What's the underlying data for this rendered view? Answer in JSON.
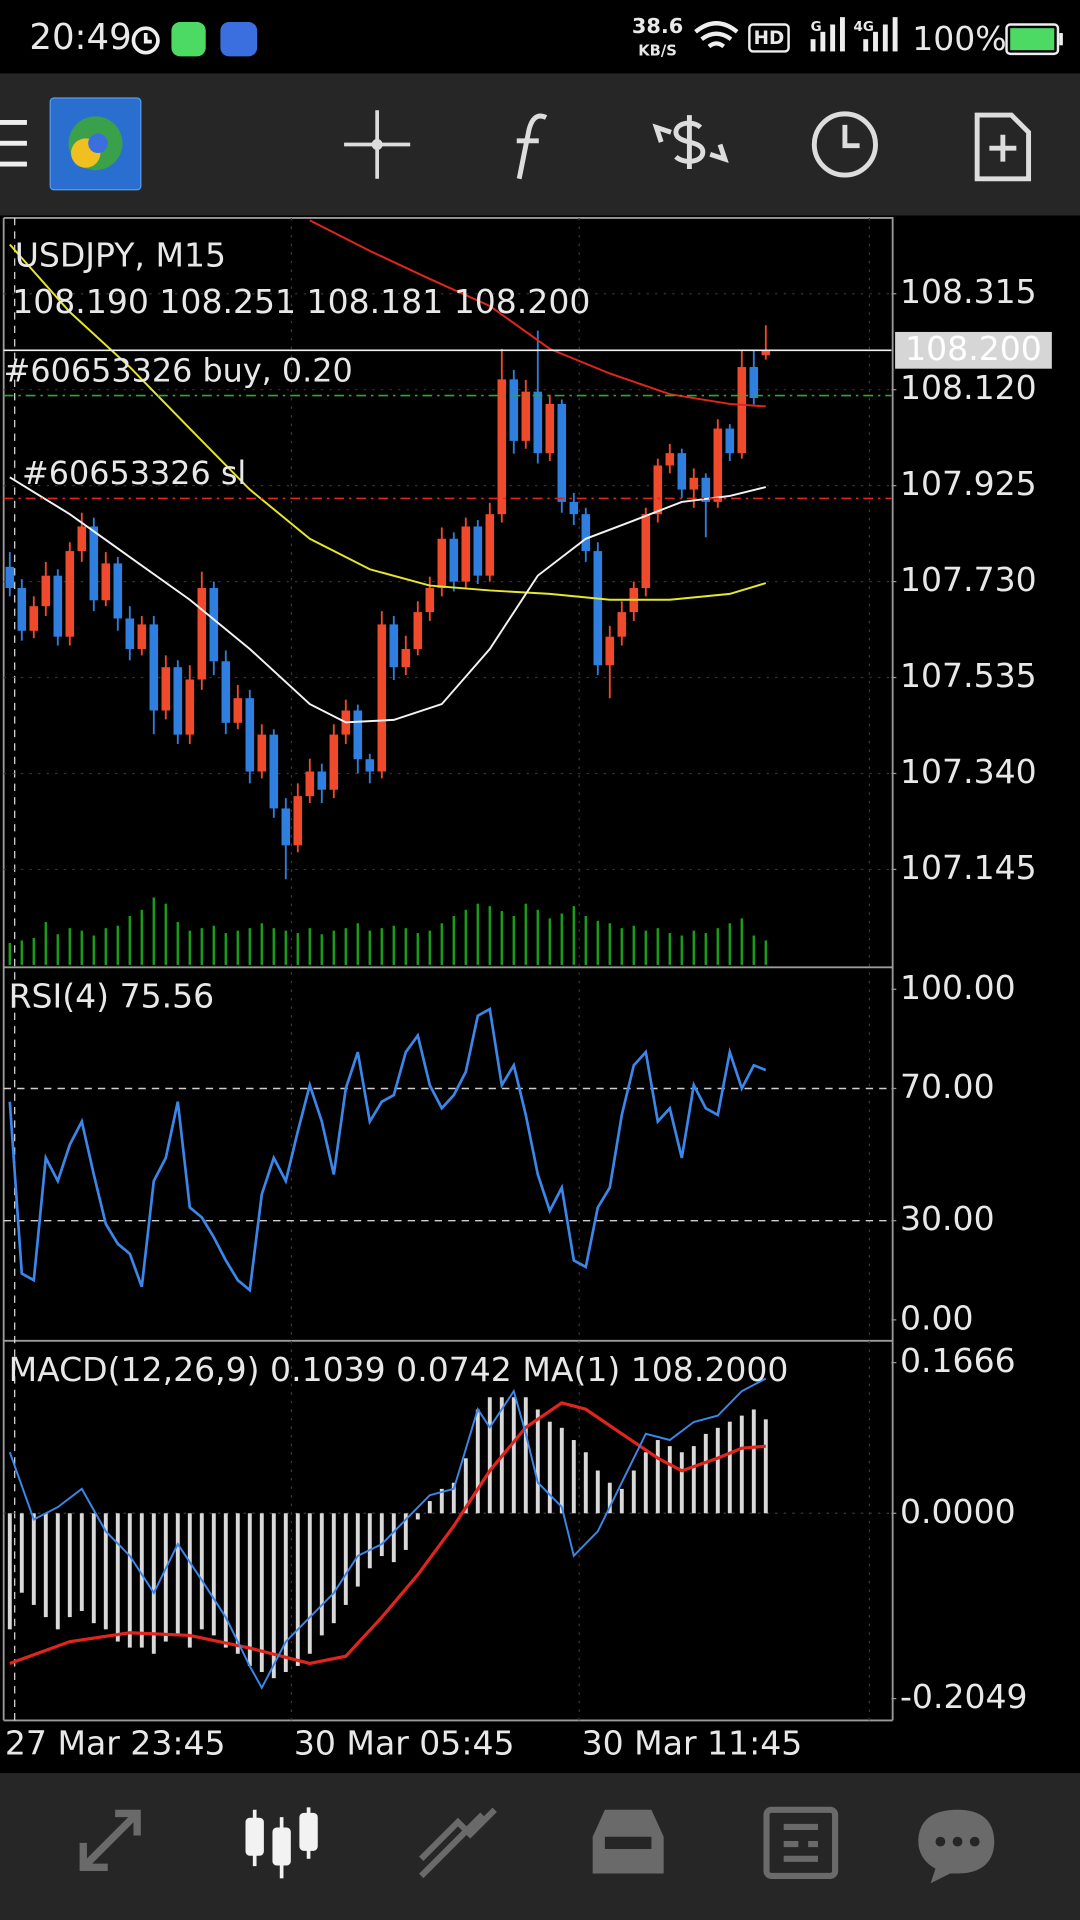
{
  "status_bar": {
    "time": "20:49",
    "speed": "38.6",
    "speed_unit": "KB/S",
    "hd": "HD",
    "net1": "G",
    "net2": "4G",
    "battery": "100%"
  },
  "time_axis": {
    "labels": [
      "27 Mar 23:45",
      "30 Mar 05:45",
      "30 Mar 11:45"
    ]
  },
  "chart_data": [
    {
      "type": "candlestick",
      "title": "USDJPY, M15",
      "ohlc_label": "108.190 108.251 108.181 108.200",
      "colors": {
        "up": "#ef4a2b",
        "down": "#2f7fe0"
      },
      "candles": [
        [
          107.76,
          107.79,
          107.7,
          107.717
        ],
        [
          107.717,
          107.735,
          107.61,
          107.63
        ],
        [
          107.63,
          107.7,
          107.615,
          107.68
        ],
        [
          107.68,
          107.77,
          107.66,
          107.742
        ],
        [
          107.742,
          107.755,
          107.6,
          107.618
        ],
        [
          107.618,
          107.81,
          107.6,
          107.792
        ],
        [
          107.792,
          107.87,
          107.77,
          107.842
        ],
        [
          107.842,
          107.86,
          107.67,
          107.692
        ],
        [
          107.692,
          107.79,
          107.68,
          107.767
        ],
        [
          107.767,
          107.78,
          107.63,
          107.655
        ],
        [
          107.655,
          107.68,
          107.57,
          107.593
        ],
        [
          107.593,
          107.66,
          107.58,
          107.643
        ],
        [
          107.643,
          107.66,
          107.42,
          107.468
        ],
        [
          107.468,
          107.58,
          107.45,
          107.556
        ],
        [
          107.556,
          107.57,
          107.4,
          107.419
        ],
        [
          107.419,
          107.56,
          107.4,
          107.531
        ],
        [
          107.531,
          107.75,
          107.51,
          107.717
        ],
        [
          107.717,
          107.73,
          107.54,
          107.568
        ],
        [
          107.568,
          107.59,
          107.42,
          107.443
        ],
        [
          107.443,
          107.52,
          107.43,
          107.493
        ],
        [
          107.493,
          107.51,
          107.32,
          107.344
        ],
        [
          107.344,
          107.44,
          107.33,
          107.419
        ],
        [
          107.419,
          107.43,
          107.25,
          107.269
        ],
        [
          107.269,
          107.29,
          107.125,
          107.194
        ],
        [
          107.194,
          107.32,
          107.18,
          107.294
        ],
        [
          107.294,
          107.37,
          107.28,
          107.344
        ],
        [
          107.344,
          107.36,
          107.28,
          107.307
        ],
        [
          107.307,
          107.44,
          107.29,
          107.419
        ],
        [
          107.419,
          107.49,
          107.4,
          107.468
        ],
        [
          107.468,
          107.48,
          107.34,
          107.369
        ],
        [
          107.369,
          107.38,
          107.32,
          107.344
        ],
        [
          107.344,
          107.67,
          107.33,
          107.643
        ],
        [
          107.643,
          107.66,
          107.53,
          107.556
        ],
        [
          107.556,
          107.62,
          107.54,
          107.593
        ],
        [
          107.593,
          107.69,
          107.58,
          107.668
        ],
        [
          107.668,
          107.74,
          107.65,
          107.717
        ],
        [
          107.717,
          107.84,
          107.7,
          107.817
        ],
        [
          107.817,
          107.83,
          107.71,
          107.73
        ],
        [
          107.73,
          107.86,
          107.715,
          107.842
        ],
        [
          107.842,
          107.855,
          107.725,
          107.742
        ],
        [
          107.742,
          107.89,
          107.73,
          107.867
        ],
        [
          107.867,
          108.203,
          107.85,
          108.141
        ],
        [
          108.141,
          108.16,
          107.99,
          108.016
        ],
        [
          108.016,
          108.14,
          108.0,
          108.116
        ],
        [
          108.116,
          108.24,
          107.97,
          107.991
        ],
        [
          107.991,
          108.11,
          107.975,
          108.091
        ],
        [
          108.091,
          108.1,
          107.87,
          107.892
        ],
        [
          107.892,
          107.91,
          107.845,
          107.867
        ],
        [
          107.867,
          107.88,
          107.77,
          107.792
        ],
        [
          107.792,
          107.81,
          107.54,
          107.56
        ],
        [
          107.56,
          107.64,
          107.493,
          107.618
        ],
        [
          107.618,
          107.69,
          107.6,
          107.668
        ],
        [
          107.668,
          107.73,
          107.65,
          107.717
        ],
        [
          107.717,
          107.88,
          107.7,
          107.867
        ],
        [
          107.867,
          107.98,
          107.85,
          107.966
        ],
        [
          107.966,
          108.01,
          107.95,
          107.991
        ],
        [
          107.991,
          108.0,
          107.9,
          107.917
        ],
        [
          107.917,
          107.96,
          107.88,
          107.941
        ],
        [
          107.941,
          107.95,
          107.82,
          107.892
        ],
        [
          107.892,
          108.06,
          107.88,
          108.041
        ],
        [
          108.041,
          108.05,
          107.975,
          107.991
        ],
        [
          107.991,
          108.2,
          107.98,
          108.166
        ],
        [
          108.166,
          108.2,
          108.09,
          108.103
        ],
        [
          108.19,
          108.251,
          108.181,
          108.2
        ]
      ],
      "moving_averages": [
        {
          "color": "#e0251c",
          "x": [
            25,
            30,
            35,
            40,
            45,
            50,
            55,
            60,
            63
          ],
          "values": [
            108.464,
            108.402,
            108.345,
            108.29,
            108.203,
            108.153,
            108.111,
            108.091,
            108.086
          ]
        },
        {
          "color": "#e6e62a",
          "x": [
            0,
            5,
            10,
            15,
            20,
            25,
            30,
            35,
            40,
            45,
            50,
            55,
            60,
            63
          ],
          "values": [
            108.415,
            108.278,
            108.166,
            108.041,
            107.917,
            107.817,
            107.755,
            107.722,
            107.712,
            107.705,
            107.693,
            107.693,
            107.705,
            107.727
          ]
        },
        {
          "color": "#f2f2f2",
          "x": [
            0,
            5,
            10,
            15,
            20,
            25,
            28,
            32,
            36,
            40,
            44,
            48,
            52,
            56,
            60,
            63
          ],
          "values": [
            107.942,
            107.867,
            107.78,
            107.693,
            107.593,
            107.481,
            107.444,
            107.449,
            107.481,
            107.593,
            107.742,
            107.817,
            107.854,
            107.892,
            107.904,
            107.922
          ]
        }
      ],
      "volume": {
        "color": "#1c9a1c",
        "values": [
          18,
          20,
          22,
          35,
          25,
          30,
          28,
          24,
          30,
          32,
          40,
          45,
          55,
          50,
          35,
          28,
          30,
          32,
          26,
          28,
          30,
          34,
          30,
          28,
          26,
          30,
          25,
          28,
          30,
          34,
          28,
          30,
          32,
          30,
          26,
          28,
          34,
          40,
          45,
          50,
          48,
          44,
          40,
          50,
          45,
          38,
          42,
          48,
          40,
          36,
          34,
          30,
          32,
          28,
          30,
          26,
          24,
          28,
          26,
          30,
          34,
          38,
          24,
          20
        ]
      },
      "levels": [
        {
          "label": "#60653326 buy, 0.20",
          "value": 108.108,
          "color": "#2fa82f"
        },
        {
          "label": "#60653326 sl",
          "value": 107.899,
          "color": "#e0251c"
        }
      ],
      "last_price": {
        "value": 108.2,
        "label": "108.200"
      },
      "ylim": [
        106.946,
        108.469
      ],
      "yticks": [
        108.315,
        {
          "value": 108.12,
          "label": "108.120"
        },
        107.925,
        {
          "value": 107.73,
          "label": "107.730"
        },
        107.535,
        {
          "value": 107.34,
          "label": "107.340"
        },
        107.145
      ],
      "grid": true
    },
    {
      "type": "line",
      "title": "RSI(4) 75.56",
      "color": "#3b86e8",
      "values": [
        66,
        14,
        12,
        49,
        42,
        53,
        60,
        44,
        29,
        23,
        20,
        10,
        42,
        49,
        66,
        34,
        31,
        25,
        18,
        12,
        9,
        38,
        49,
        42,
        57,
        71,
        60,
        44,
        70,
        81,
        60,
        66,
        68,
        81,
        86,
        71,
        64,
        68,
        75,
        92,
        94,
        71,
        77,
        62,
        44,
        33,
        40,
        18,
        16,
        34,
        40,
        62,
        77,
        81,
        60,
        64,
        49,
        71,
        64,
        62,
        81,
        70,
        77,
        75.56
      ],
      "levels": [
        70,
        30
      ],
      "ylim": [
        -5.6,
        105.9
      ],
      "yticks": [
        {
          "value": 100,
          "label": "100.00"
        },
        {
          "value": 70,
          "label": "70.00"
        },
        {
          "value": 30,
          "label": "30.00"
        },
        {
          "value": 0,
          "label": "0.00"
        }
      ]
    },
    {
      "type": "bar",
      "title": "MACD(12,26,9) 0.1039 0.0742 MA(1) 108.2000",
      "color": "#d9d9d9",
      "values": [
        -0.1283,
        -0.0878,
        -0.1013,
        -0.1148,
        -0.1283,
        -0.1148,
        -0.108,
        -0.1215,
        -0.1283,
        -0.1418,
        -0.1485,
        -0.1485,
        -0.1553,
        -0.1418,
        -0.135,
        -0.1485,
        -0.1283,
        -0.135,
        -0.1485,
        -0.1553,
        -0.1688,
        -0.1755,
        -0.1823,
        -0.1755,
        -0.1688,
        -0.1553,
        -0.135,
        -0.1215,
        -0.1013,
        -0.081,
        -0.0608,
        -0.0473,
        -0.054,
        -0.0405,
        -0.0068,
        0.0135,
        0.027,
        0.0338,
        0.0608,
        0.1148,
        0.1283,
        0.1283,
        0.1283,
        0.1283,
        0.1148,
        0.1013,
        0.0945,
        0.081,
        0.0675,
        0.0473,
        0.0338,
        0.027,
        0.0473,
        0.0675,
        0.081,
        0.0743,
        0.0675,
        0.0743,
        0.0878,
        0.0945,
        0.1013,
        0.108,
        0.1148,
        0.1039
      ],
      "lines": [
        {
          "color": "#e0251c",
          "x": [
            0,
            5,
            10,
            15,
            20,
            25,
            28,
            31,
            34,
            37,
            40,
            43,
            46,
            48,
            51,
            54,
            56,
            59,
            61,
            63
          ],
          "values": [
            -0.166,
            -0.142,
            -0.132,
            -0.135,
            -0.149,
            -0.166,
            -0.158,
            -0.115,
            -0.068,
            -0.014,
            0.047,
            0.095,
            0.122,
            0.115,
            0.088,
            0.061,
            0.047,
            0.061,
            0.072,
            0.0742
          ]
        },
        {
          "color": "#3b86e8",
          "x": [
            0,
            2,
            4,
            6,
            8,
            10,
            12,
            14,
            16,
            18,
            20,
            21,
            23,
            25,
            27,
            29,
            31,
            33,
            35,
            37,
            39,
            40,
            42,
            43,
            44,
            46,
            47,
            49,
            51,
            53,
            55,
            57,
            59,
            61,
            63
          ],
          "values": [
            0.0675,
            -0.0068,
            0.0068,
            0.027,
            -0.02,
            -0.047,
            -0.088,
            -0.034,
            -0.074,
            -0.115,
            -0.169,
            -0.193,
            -0.142,
            -0.115,
            -0.088,
            -0.047,
            -0.034,
            -0.007,
            0.02,
            0.027,
            0.115,
            0.095,
            0.135,
            0.088,
            0.034,
            0.007,
            -0.047,
            -0.02,
            0.034,
            0.088,
            0.081,
            0.101,
            0.108,
            0.135,
            0.149
          ]
        }
      ],
      "ylim": [
        -0.229,
        0.188
      ],
      "yticks": [
        0.1666,
        {
          "value": 0,
          "label": "0.0000"
        },
        -0.2049
      ]
    }
  ]
}
